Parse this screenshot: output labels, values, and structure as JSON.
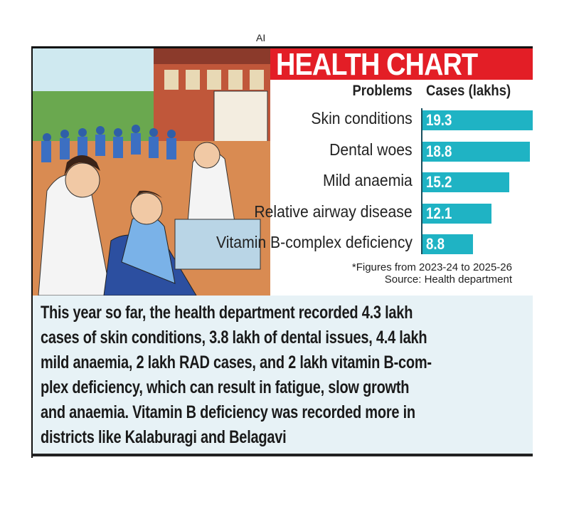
{
  "ai_tag": "AI",
  "title": "HEALTH CHART",
  "colors": {
    "banner": "#e31e26",
    "bar": "#1fb3c4",
    "textbox": "#e7f2f6"
  },
  "chart_data": {
    "type": "bar",
    "orientation": "horizontal",
    "title": "HEALTH CHART",
    "category_header": "Problems",
    "value_header": "Cases (lakhs)",
    "categories": [
      "Skin conditions",
      "Dental woes",
      "Mild anaemia",
      "Relative airway disease",
      "Vitamin B-complex deficiency"
    ],
    "values": [
      19.3,
      18.8,
      15.2,
      12.1,
      8.8
    ],
    "value_labels": [
      "19.3",
      "18.8",
      "15.2",
      "12.1",
      "8.8"
    ],
    "grid": false
  },
  "footnote": "*Figures from 2023-24 to 2025-26",
  "source": "Source: Health department",
  "summary_lines": [
    "This year so far, the health department recorded 4.3 lakh",
    "cases of skin conditions, 3.8 lakh of dental issues, 4.4 lakh",
    "mild anaemia, 2 lakh RAD cases, and 2 lakh vitamin B-com-",
    "plex deficiency, which can result in fatigue, slow growth",
    "and anaemia. Vitamin B deficiency was recorded more in",
    "districts like Kalaburagi and Belagavi"
  ]
}
